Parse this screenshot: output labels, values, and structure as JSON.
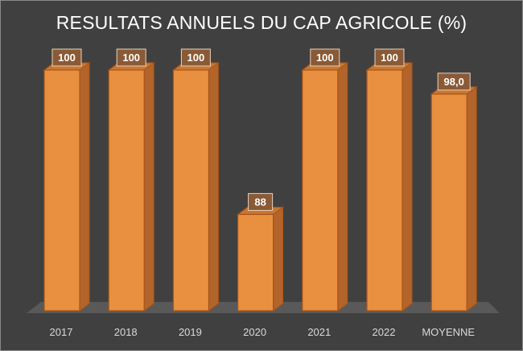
{
  "chart_data": {
    "type": "bar",
    "title": "RESULTATS ANNUELS DU CAP AGRICOLE (%)",
    "categories": [
      "2017",
      "2018",
      "2019",
      "2020",
      "2021",
      "2022",
      "MOYENNE"
    ],
    "values": [
      100,
      100,
      100,
      88,
      100,
      100,
      98.0
    ],
    "data_labels": [
      "100",
      "100",
      "100",
      "88",
      "100",
      "100",
      "98,0"
    ],
    "ylim": [
      80,
      100
    ],
    "xlabel": "",
    "ylabel": "",
    "grid": false,
    "legend": "none",
    "style": "3d-column"
  },
  "colors": {
    "background": "#404040",
    "bar_front": "#e8903f",
    "bar_side": "#b3642a",
    "bar_top": "#c9762f",
    "bar_edge": "#a8541a",
    "label_box": "#8a5a36",
    "label_box_border": "#e8d2bd",
    "floor": "#595959",
    "text": "#ffffff",
    "axis_text": "#d9d9d9"
  }
}
